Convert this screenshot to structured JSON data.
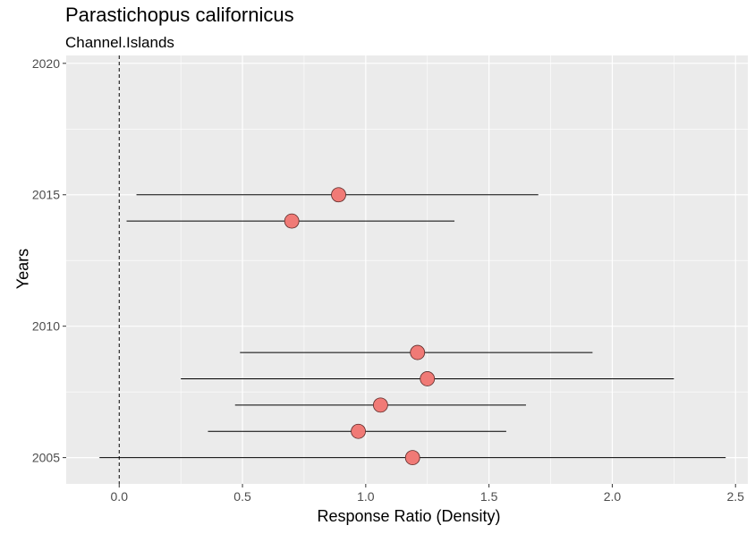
{
  "chart_data": {
    "type": "scatter",
    "title": "Parastichopus californicus",
    "subtitle": "Channel.Islands",
    "xlabel": "Response Ratio (Density)",
    "ylabel": "Years",
    "xlim": [
      -0.215,
      2.55
    ],
    "ylim": [
      2004,
      2020.3
    ],
    "x_ticks": [
      0.0,
      0.5,
      1.0,
      1.5,
      2.0,
      2.5
    ],
    "x_tick_labels": [
      "0.0",
      "0.5",
      "1.0",
      "1.5",
      "2.0",
      "2.5"
    ],
    "y_ticks": [
      2005,
      2010,
      2015,
      2020
    ],
    "y_tick_labels": [
      "2005",
      "2010",
      "2015",
      "2020"
    ],
    "reference_line_x": 0,
    "grid": true,
    "point_color": "#f07a76",
    "points": [
      {
        "year": 2005,
        "x": 1.19,
        "lower": -0.08,
        "upper": 2.46
      },
      {
        "year": 2006,
        "x": 0.97,
        "lower": 0.36,
        "upper": 1.57
      },
      {
        "year": 2007,
        "x": 1.06,
        "lower": 0.47,
        "upper": 1.65
      },
      {
        "year": 2008,
        "x": 1.25,
        "lower": 0.25,
        "upper": 2.25
      },
      {
        "year": 2009,
        "x": 1.21,
        "lower": 0.49,
        "upper": 1.92
      },
      {
        "year": 2014,
        "x": 0.7,
        "lower": 0.03,
        "upper": 1.36
      },
      {
        "year": 2015,
        "x": 0.89,
        "lower": 0.07,
        "upper": 1.7
      }
    ]
  }
}
